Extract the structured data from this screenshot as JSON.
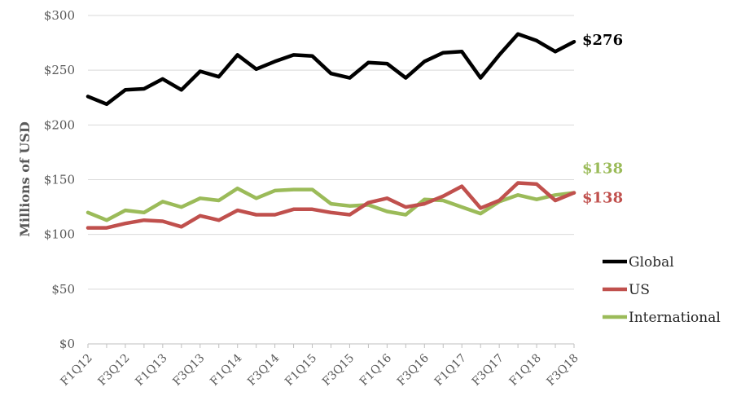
{
  "chart_data": {
    "type": "line",
    "title": "",
    "xlabel": "",
    "ylabel": "Millions of USD",
    "ylim": [
      0,
      300
    ],
    "y_ticks": [
      0,
      50,
      100,
      150,
      200,
      250,
      300
    ],
    "y_tick_labels": [
      "$0",
      "$50",
      "$100",
      "$150",
      "$200",
      "$250",
      "$300"
    ],
    "grid": "horizontal",
    "legend": "right",
    "categories": [
      "F1Q12",
      "F2Q12",
      "F3Q12",
      "F4Q12",
      "F1Q13",
      "F2Q13",
      "F3Q13",
      "F4Q13",
      "F1Q14",
      "F2Q14",
      "F3Q14",
      "F4Q14",
      "F1Q15",
      "F2Q15",
      "F3Q15",
      "F4Q15",
      "F1Q16",
      "F2Q16",
      "F3Q16",
      "F4Q16",
      "F1Q17",
      "F2Q17",
      "F3Q17",
      "F4Q17",
      "F1Q18",
      "F2Q18",
      "F3Q18"
    ],
    "x_tick_labels": [
      "F1Q12",
      "F3Q12",
      "F1Q13",
      "F3Q13",
      "F1Q14",
      "F3Q14",
      "F1Q15",
      "F3Q15",
      "F1Q16",
      "F3Q16",
      "F1Q17",
      "F3Q17",
      "F1Q18",
      "F3Q18"
    ],
    "series": [
      {
        "name": "Global",
        "color": "#000000",
        "end_label": "$276",
        "values": [
          226,
          219,
          232,
          233,
          242,
          232,
          249,
          244,
          264,
          251,
          258,
          264,
          263,
          247,
          243,
          257,
          256,
          243,
          258,
          266,
          267,
          243,
          264,
          283,
          277,
          267,
          276
        ]
      },
      {
        "name": "US",
        "color": "#C0504D",
        "end_label": "$138",
        "values": [
          106,
          106,
          110,
          113,
          112,
          107,
          117,
          113,
          122,
          118,
          118,
          123,
          123,
          120,
          118,
          129,
          133,
          125,
          128,
          135,
          144,
          124,
          131,
          147,
          146,
          131,
          138
        ]
      },
      {
        "name": "International",
        "color": "#9BBB59",
        "end_label": "$138",
        "values": [
          120,
          113,
          122,
          120,
          130,
          125,
          133,
          131,
          142,
          133,
          140,
          141,
          141,
          128,
          126,
          127,
          121,
          118,
          132,
          131,
          125,
          119,
          130,
          136,
          132,
          136,
          138
        ]
      }
    ]
  }
}
